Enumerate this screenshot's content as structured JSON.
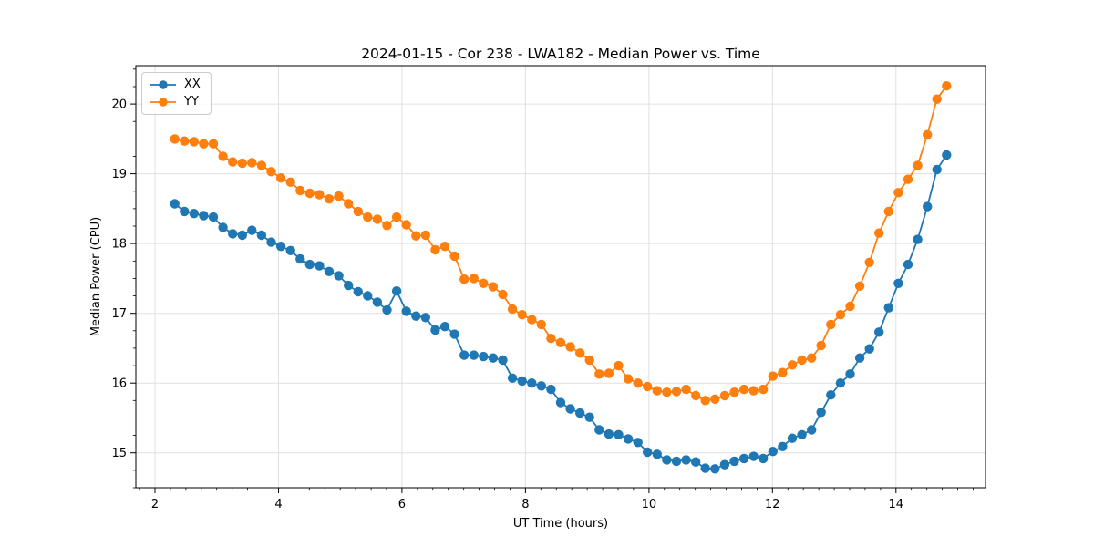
{
  "legend": {
    "items": [
      {
        "label": "XX",
        "color": "#1f77b4"
      },
      {
        "label": "YY",
        "color": "#ff7f0e"
      }
    ]
  },
  "chart_data": {
    "type": "line",
    "title": "2024-01-15 - Cor 238 - LWA182 - Median Power vs. Time",
    "xlabel": "UT Time (hours)",
    "ylabel": "Median Power (CPU)",
    "xlim": [
      1.69,
      15.45
    ],
    "ylim": [
      14.5,
      20.55
    ],
    "xticks": [
      2,
      4,
      6,
      8,
      10,
      12,
      14
    ],
    "yticks": [
      15,
      16,
      17,
      18,
      19,
      20
    ],
    "minor_tick_step": 0.25,
    "grid": true,
    "grid_color": "#e0e0e0",
    "legend_position": "upper left",
    "marker": "circle",
    "x_start": 2.32,
    "x_step": 0.15625,
    "series": [
      {
        "name": "XX",
        "color": "#1f77b4",
        "values": [
          18.57,
          18.46,
          18.43,
          18.4,
          18.38,
          18.23,
          18.14,
          18.12,
          18.19,
          18.12,
          18.02,
          17.96,
          17.9,
          17.78,
          17.7,
          17.68,
          17.6,
          17.54,
          17.4,
          17.31,
          17.25,
          17.16,
          17.05,
          17.32,
          17.03,
          16.96,
          16.94,
          16.76,
          16.81,
          16.7,
          16.4,
          16.4,
          16.38,
          16.36,
          16.33,
          16.07,
          16.03,
          16.0,
          15.96,
          15.91,
          15.72,
          15.63,
          15.57,
          15.51,
          15.33,
          15.27,
          15.26,
          15.2,
          15.15,
          15.01,
          14.98,
          14.9,
          14.88,
          14.9,
          14.87,
          14.78,
          14.77,
          14.83,
          14.88,
          14.92,
          14.95,
          14.92,
          15.02,
          15.09,
          15.21,
          15.26,
          15.33,
          15.58,
          15.83,
          16.0,
          16.13,
          16.36,
          16.49,
          16.73,
          17.08,
          17.43,
          17.7,
          18.06,
          18.53,
          19.06,
          19.27
        ]
      },
      {
        "name": "YY",
        "color": "#ff7f0e",
        "values": [
          19.5,
          19.47,
          19.46,
          19.43,
          19.43,
          19.25,
          19.17,
          19.15,
          19.16,
          19.12,
          19.03,
          18.94,
          18.88,
          18.76,
          18.72,
          18.7,
          18.64,
          18.68,
          18.57,
          18.46,
          18.38,
          18.35,
          18.26,
          18.38,
          18.27,
          18.11,
          18.12,
          17.91,
          17.96,
          17.82,
          17.49,
          17.5,
          17.43,
          17.38,
          17.27,
          17.06,
          16.98,
          16.91,
          16.84,
          16.64,
          16.58,
          16.52,
          16.43,
          16.33,
          16.13,
          16.14,
          16.25,
          16.06,
          16.0,
          15.95,
          15.89,
          15.87,
          15.88,
          15.91,
          15.82,
          15.75,
          15.77,
          15.82,
          15.87,
          15.91,
          15.89,
          15.91,
          16.1,
          16.15,
          16.26,
          16.33,
          16.36,
          16.54,
          16.84,
          16.98,
          17.1,
          17.39,
          17.73,
          18.15,
          18.46,
          18.73,
          18.92,
          19.12,
          19.56,
          20.07,
          20.26
        ]
      }
    ]
  }
}
